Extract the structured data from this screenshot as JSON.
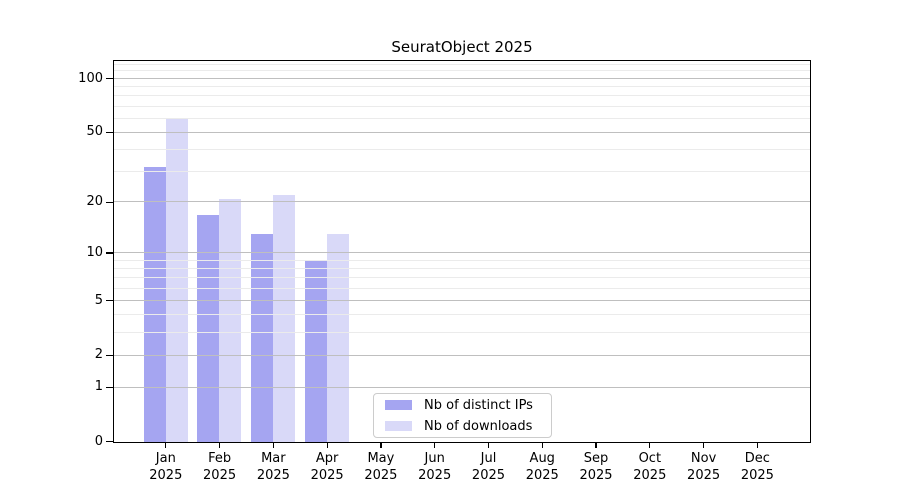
{
  "chart_data": {
    "type": "bar",
    "title": "SeuratObject 2025",
    "categories": [
      "Jan",
      "Feb",
      "Mar",
      "Apr",
      "May",
      "Jun",
      "Jul",
      "Aug",
      "Sep",
      "Oct",
      "Nov",
      "Dec"
    ],
    "category_year": "2025",
    "series": [
      {
        "name": "Nb of distinct IPs",
        "color": "#a5a5f1",
        "values": [
          32,
          17,
          13,
          9,
          0,
          0,
          0,
          0,
          0,
          0,
          0,
          0
        ]
      },
      {
        "name": "Nb of downloads",
        "color": "#d9d9f8",
        "values": [
          60,
          21,
          22,
          13,
          0,
          0,
          0,
          0,
          0,
          0,
          0,
          0
        ]
      }
    ],
    "yscale": "log1p",
    "ylim": [
      0,
      129
    ],
    "y_major_ticks": [
      0,
      1,
      2,
      5,
      10,
      20,
      50,
      100
    ],
    "y_minor_ticks": [
      3,
      4,
      6,
      7,
      8,
      9,
      30,
      40,
      60,
      70,
      80,
      90,
      110,
      120
    ],
    "grid": "on",
    "grid_major_color": "#bfbfbf",
    "grid_minor_color": "#ebebeb",
    "axis_color": "#000000",
    "legend_position": "lower-center"
  }
}
